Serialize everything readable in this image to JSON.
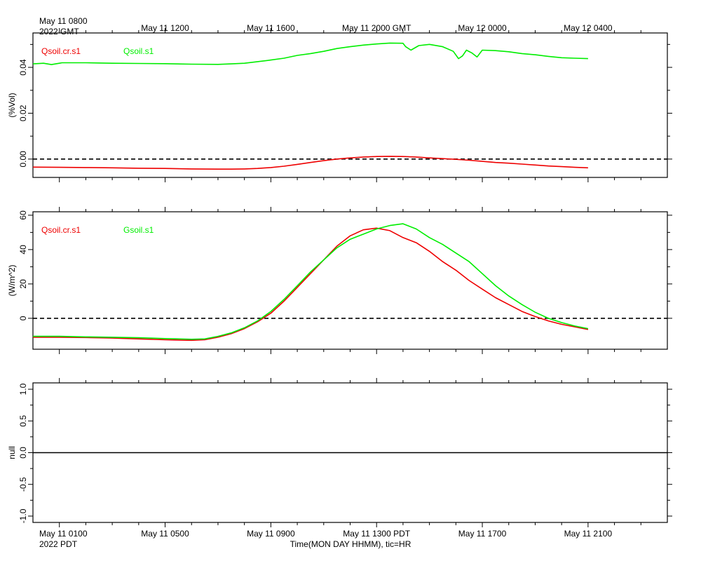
{
  "header": {
    "top_time_axis": {
      "first_label_line1": "May 11 0800",
      "first_label_line2": "2022 GMT",
      "labels": [
        "May 11 1200",
        "May 11 1600",
        "May 11 2000 GMT",
        "May 12 0000",
        "May 12 0400"
      ]
    }
  },
  "footer": {
    "bottom_time_axis": {
      "first_label_line1": "May 11 0100",
      "first_label_line2": "2022 PDT",
      "labels": [
        "May 11 0500",
        "May 11 0900",
        "May 11 1300 PDT",
        "May 11 1700",
        "May 11 2100"
      ]
    },
    "x_title": "Time(MON DAY HHMM), tic=HR"
  },
  "colors": {
    "red": "#ee0000",
    "green": "#00ee00",
    "axis": "#000000"
  },
  "chart_data": [
    {
      "type": "line",
      "xlabel": "",
      "ylabel": "(%Vol)",
      "x_unit": "hours since May 11 0000 PDT",
      "xlim": [
        0,
        24
      ],
      "ylim": [
        -0.008,
        0.055
      ],
      "y_ticks": [
        0.0,
        0.02,
        0.04
      ],
      "y_tick_labels": [
        "0.00",
        "0.02",
        "0.04"
      ],
      "zero_line": "dashed",
      "legend": "top-left",
      "series": [
        {
          "name": "Qsoil.cr.s1",
          "color": "#ee0000",
          "x": [
            0,
            1,
            2,
            3,
            4,
            5,
            6,
            7,
            7.5,
            8,
            8.5,
            9,
            9.5,
            10,
            10.5,
            11,
            11.5,
            12,
            12.5,
            13,
            13.5,
            14,
            14.5,
            15,
            15.5,
            16,
            16.5,
            17,
            17.5,
            18,
            18.5,
            19,
            19.5,
            20,
            20.5,
            21
          ],
          "values": [
            -0.0035,
            -0.0036,
            -0.0037,
            -0.0038,
            -0.004,
            -0.0041,
            -0.0043,
            -0.0044,
            -0.0044,
            -0.0043,
            -0.0041,
            -0.0037,
            -0.0031,
            -0.0023,
            -0.0015,
            -0.0007,
            0.0,
            0.0005,
            0.0009,
            0.0011,
            0.0012,
            0.0011,
            0.0009,
            0.0005,
            0.0002,
            -0.0001,
            -0.0005,
            -0.001,
            -0.0015,
            -0.0018,
            -0.0022,
            -0.0026,
            -0.003,
            -0.0033,
            -0.0036,
            -0.0038
          ]
        },
        {
          "name": "Qsoil.s1",
          "color": "#00ee00",
          "x": [
            0,
            0.4,
            0.7,
            1,
            1.1,
            2,
            3,
            4,
            5,
            6,
            7,
            7.5,
            8,
            8.5,
            9,
            9.5,
            10,
            10.5,
            11,
            11.5,
            12,
            12.5,
            13,
            13.5,
            14,
            14.1,
            14.3,
            14.6,
            15,
            15.5,
            15.9,
            16.1,
            16.25,
            16.4,
            16.6,
            16.8,
            17,
            17.5,
            18,
            18.5,
            19,
            19.5,
            20,
            20.5,
            21
          ],
          "values": [
            0.0415,
            0.0418,
            0.0412,
            0.0418,
            0.042,
            0.042,
            0.0418,
            0.0417,
            0.0416,
            0.0414,
            0.0413,
            0.0415,
            0.0418,
            0.0425,
            0.0432,
            0.044,
            0.0452,
            0.046,
            0.047,
            0.0482,
            0.049,
            0.0497,
            0.0502,
            0.0506,
            0.0505,
            0.049,
            0.0475,
            0.0495,
            0.05,
            0.049,
            0.047,
            0.0438,
            0.045,
            0.0475,
            0.0463,
            0.0445,
            0.0475,
            0.0473,
            0.0468,
            0.046,
            0.0455,
            0.0448,
            0.0442,
            0.044,
            0.0438
          ]
        }
      ]
    },
    {
      "type": "line",
      "xlabel": "",
      "ylabel": "(W/m^2)",
      "x_unit": "hours since May 11 0000 PDT",
      "xlim": [
        0,
        24
      ],
      "ylim": [
        -18,
        62
      ],
      "y_ticks": [
        0,
        20,
        40,
        60
      ],
      "y_tick_labels": [
        "0",
        "20",
        "40",
        "60"
      ],
      "zero_line": "dashed",
      "legend": "top-left",
      "series": [
        {
          "name": "Qsoil.cr.s1",
          "color": "#ee0000",
          "x": [
            0,
            1,
            2,
            3,
            4,
            5,
            6,
            6.5,
            7,
            7.5,
            8,
            8.5,
            9,
            9.5,
            10,
            10.5,
            11,
            11.5,
            12,
            12.5,
            13,
            13.5,
            14,
            14.5,
            15,
            15.5,
            16,
            16.5,
            17,
            17.5,
            18,
            18.5,
            19,
            19.5,
            20,
            20.5,
            21
          ],
          "values": [
            -11,
            -11,
            -11.2,
            -11.5,
            -12,
            -12.5,
            -12.8,
            -12.5,
            -11,
            -9,
            -6,
            -2,
            3,
            10,
            18,
            26,
            34,
            42,
            48,
            51.5,
            52.5,
            51,
            47,
            44,
            39,
            33,
            28,
            22,
            17,
            12,
            8,
            4,
            1,
            -1.5,
            -3.5,
            -5,
            -6.5
          ]
        },
        {
          "name": "Gsoil.s1",
          "color": "#00ee00",
          "x": [
            0,
            1,
            2,
            3,
            4,
            5,
            6,
            6.5,
            7,
            7.5,
            8,
            8.5,
            9,
            9.5,
            10,
            10.5,
            11,
            11.5,
            12,
            12.5,
            13,
            13.5,
            14,
            14.5,
            15,
            15.5,
            16,
            16.5,
            17,
            17.5,
            18,
            18.5,
            19,
            19.5,
            20,
            20.5,
            21
          ],
          "values": [
            -10.5,
            -10.5,
            -10.8,
            -11,
            -11.3,
            -11.8,
            -12.2,
            -12,
            -10.5,
            -8.5,
            -5.5,
            -1.5,
            4,
            11,
            19,
            27,
            34,
            41,
            46,
            49,
            52,
            54,
            55,
            52,
            47,
            43,
            38,
            33,
            26,
            19,
            13,
            8,
            3.5,
            0,
            -2.5,
            -4.5,
            -6
          ]
        }
      ]
    },
    {
      "type": "line",
      "xlabel": "",
      "ylabel": "null",
      "xlim": [
        0,
        24
      ],
      "ylim": [
        -1.1,
        1.1
      ],
      "y_ticks": [
        -1.0,
        -0.5,
        0.0,
        0.5,
        1.0
      ],
      "y_tick_labels": [
        "-1.0",
        "-0.5",
        "0.0",
        "0.5",
        "1.0"
      ],
      "zero_line": "solid",
      "series": []
    }
  ]
}
